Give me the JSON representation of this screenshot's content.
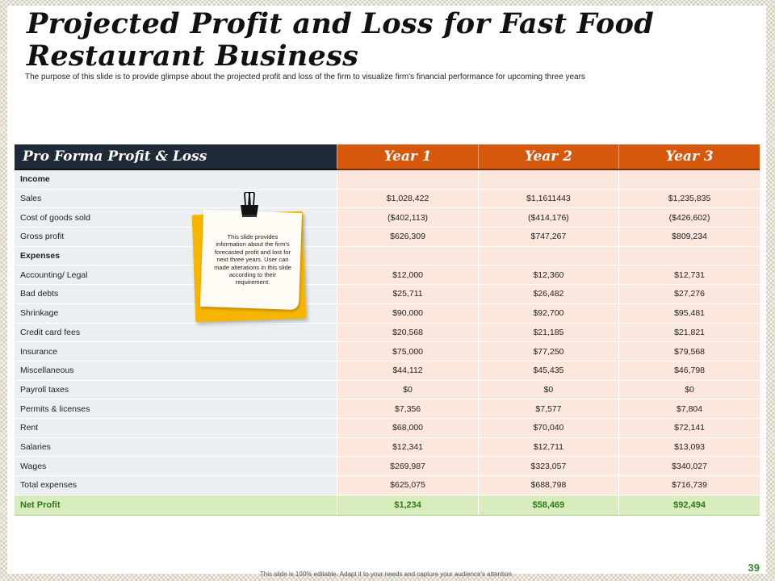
{
  "title": "Projected Profit and Loss for Fast Food Restaurant Business",
  "subtitle": "The purpose of this slide is to provide glimpse about the projected profit and loss of the firm to visualize firm's financial performance for upcoming three years",
  "table": {
    "header": {
      "label": "Pro Forma Profit & Loss",
      "years": [
        "Year 1",
        "Year 2",
        "Year 3"
      ]
    },
    "rows": [
      {
        "label": "Income",
        "values": [
          "",
          "",
          ""
        ]
      },
      {
        "label": "Sales",
        "values": [
          "$1,028,422",
          "$1,1611443",
          "$1,235,835"
        ]
      },
      {
        "label": "Cost of goods sold",
        "values": [
          "($402,113)",
          "($414,176)",
          "($426,602)"
        ]
      },
      {
        "label": "Gross profit",
        "values": [
          "$626,309",
          "$747,267",
          "$809,234"
        ]
      },
      {
        "label": "Expenses",
        "values": [
          "",
          "",
          ""
        ]
      },
      {
        "label": "Accounting/ Legal",
        "values": [
          "$12,000",
          "$12,360",
          "$12,731"
        ]
      },
      {
        "label": "Bad debts",
        "values": [
          "$25,711",
          "$26,482",
          "$27,276"
        ]
      },
      {
        "label": "Shrinkage",
        "values": [
          "$90,000",
          "$92,700",
          "$95,481"
        ]
      },
      {
        "label": "Credit card fees",
        "values": [
          "$20,568",
          "$21,185",
          "$21,821"
        ]
      },
      {
        "label": "Insurance",
        "values": [
          "$75,000",
          "$77,250",
          "$79,568"
        ]
      },
      {
        "label": "Miscellaneous",
        "values": [
          "$44,112",
          "$45,435",
          "$46,798"
        ]
      },
      {
        "label": "Payroll taxes",
        "values": [
          "$0",
          "$0",
          "$0"
        ]
      },
      {
        "label": "Permits & licenses",
        "values": [
          "$7,356",
          "$7,577",
          "$7,804"
        ]
      },
      {
        "label": "Rent",
        "values": [
          "$68,000",
          "$70,040",
          "$72,141"
        ]
      },
      {
        "label": "Salaries",
        "values": [
          "$12,341",
          "$12,711",
          "$13,093"
        ]
      },
      {
        "label": "Wages",
        "values": [
          "$269,987",
          "$323,057",
          "$340,027"
        ]
      },
      {
        "label": "Total expenses",
        "values": [
          "$625,075",
          "$688,798",
          "$716,739"
        ]
      }
    ],
    "net_profit": {
      "label": "Net Profit",
      "values": [
        "$1,234",
        "$58,469",
        "$92,494"
      ]
    }
  },
  "sticky_note": {
    "text": "This slide provides information about the firm's forecasted profit and lost for next three years. User can made alterations in this slide according to their requirement.",
    "icon": "binder-clip-icon"
  },
  "footer": "This slide is 100% editable. Adapt it to your needs and capture your audience's attention.",
  "page_number": "39",
  "colors": {
    "header_dark": "#1f2a38",
    "header_orange": "#d5580d",
    "value_cell": "#fbe7dc",
    "label_cell": "#eceff1",
    "net_profit_bg": "#d9ecbd",
    "net_profit_text": "#2f7a14",
    "note_yellow": "#f7b500",
    "page_number": "#2e8b2e"
  }
}
